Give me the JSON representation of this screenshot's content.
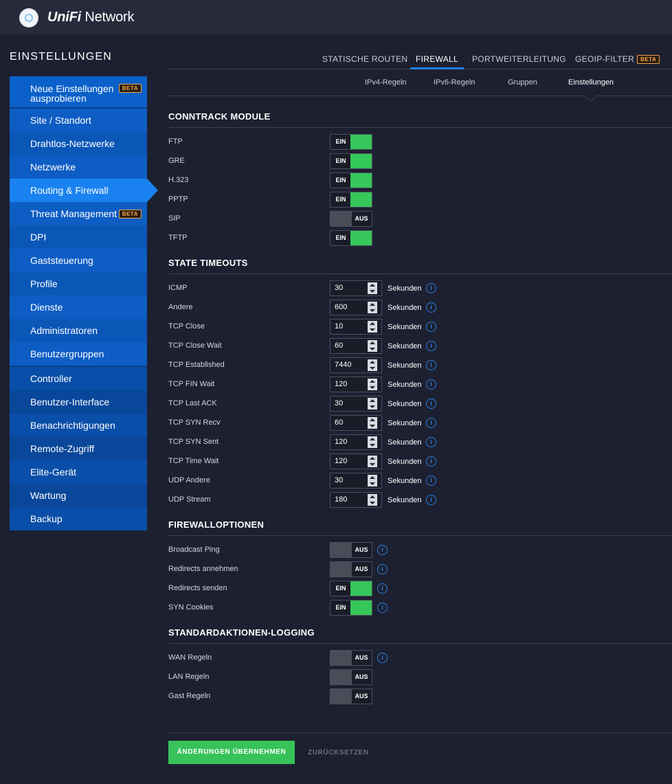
{
  "app": {
    "brand_uni": "UniFi",
    "brand_rest": " Network"
  },
  "sidebar": {
    "title": "EINSTELLUNGEN",
    "new_item": {
      "label": "Neue Einstellungen ausprobieren",
      "badge": "BETA"
    },
    "group1": [
      {
        "label": "Site / Standort"
      },
      {
        "label": "Drahtlos-Netzwerke"
      },
      {
        "label": "Netzwerke"
      },
      {
        "label": "Routing & Firewall",
        "active": true
      },
      {
        "label": "Threat Management",
        "badge": "BETA"
      },
      {
        "label": "DPI"
      },
      {
        "label": "Gaststeuerung"
      },
      {
        "label": "Profile"
      },
      {
        "label": "Dienste"
      },
      {
        "label": "Administratoren"
      },
      {
        "label": "Benutzergruppen"
      }
    ],
    "group2": [
      {
        "label": "Controller"
      },
      {
        "label": "Benutzer-Interface"
      },
      {
        "label": "Benachrichtigungen"
      },
      {
        "label": "Remote-Zugriff"
      },
      {
        "label": "Elite-Gerät"
      },
      {
        "label": "Wartung"
      },
      {
        "label": "Backup"
      }
    ]
  },
  "tabs": [
    {
      "label": "STATISCHE ROUTEN"
    },
    {
      "label": "FIREWALL",
      "active": true
    },
    {
      "label": "PORTWEITERLEITUNG"
    },
    {
      "label": "GEOIP-FILTER",
      "badge": "BETA"
    }
  ],
  "subtabs": [
    {
      "label": "IPv4-Regeln"
    },
    {
      "label": "IPv6-Regeln"
    },
    {
      "label": "Gruppen"
    },
    {
      "label": "Einstellungen",
      "active": true
    }
  ],
  "toggle_text": {
    "on": "EIN",
    "off": "AUS"
  },
  "conntrack": {
    "title": "CONNTRACK MODULE",
    "rows": [
      {
        "label": "FTP",
        "state": "on"
      },
      {
        "label": "GRE",
        "state": "on"
      },
      {
        "label": "H.323",
        "state": "on"
      },
      {
        "label": "PPTP",
        "state": "on"
      },
      {
        "label": "SIP",
        "state": "off"
      },
      {
        "label": "TFTP",
        "state": "on"
      }
    ]
  },
  "timeouts": {
    "title": "STATE TIMEOUTS",
    "unit": "Sekunden",
    "rows": [
      {
        "label": "ICMP",
        "value": "30"
      },
      {
        "label": "Andere",
        "value": "600"
      },
      {
        "label": "TCP Close",
        "value": "10"
      },
      {
        "label": "TCP Close Wait",
        "value": "60"
      },
      {
        "label": "TCP Established",
        "value": "7440"
      },
      {
        "label": "TCP FIN Wait",
        "value": "120"
      },
      {
        "label": "TCP Last ACK",
        "value": "30"
      },
      {
        "label": "TCP SYN Recv",
        "value": "60"
      },
      {
        "label": "TCP SYN Sent",
        "value": "120"
      },
      {
        "label": "TCP Time Wait",
        "value": "120"
      },
      {
        "label": "UDP Andere",
        "value": "30"
      },
      {
        "label": "UDP Stream",
        "value": "180"
      }
    ]
  },
  "firewall_options": {
    "title": "FIREWALLOPTIONEN",
    "rows": [
      {
        "label": "Broadcast Ping",
        "state": "off"
      },
      {
        "label": "Redirects annehmen",
        "state": "off"
      },
      {
        "label": "Redirects senden",
        "state": "on"
      },
      {
        "label": "SYN Cookies",
        "state": "on"
      }
    ]
  },
  "logging": {
    "title": "STANDARDAKTIONEN-LOGGING",
    "rows": [
      {
        "label": "WAN Regeln",
        "state": "off",
        "info": true
      },
      {
        "label": "LAN Regeln",
        "state": "off"
      },
      {
        "label": "Gast Regeln",
        "state": "off"
      }
    ]
  },
  "footer": {
    "apply": "ÄNDERUNGEN ÜBERNEHMEN",
    "reset": "ZURÜCKSETZEN"
  },
  "colors": {
    "accent": "#1a82f0",
    "toggle_on": "#35c759",
    "apply": "#37c25a",
    "beta": "#f2a64b"
  }
}
